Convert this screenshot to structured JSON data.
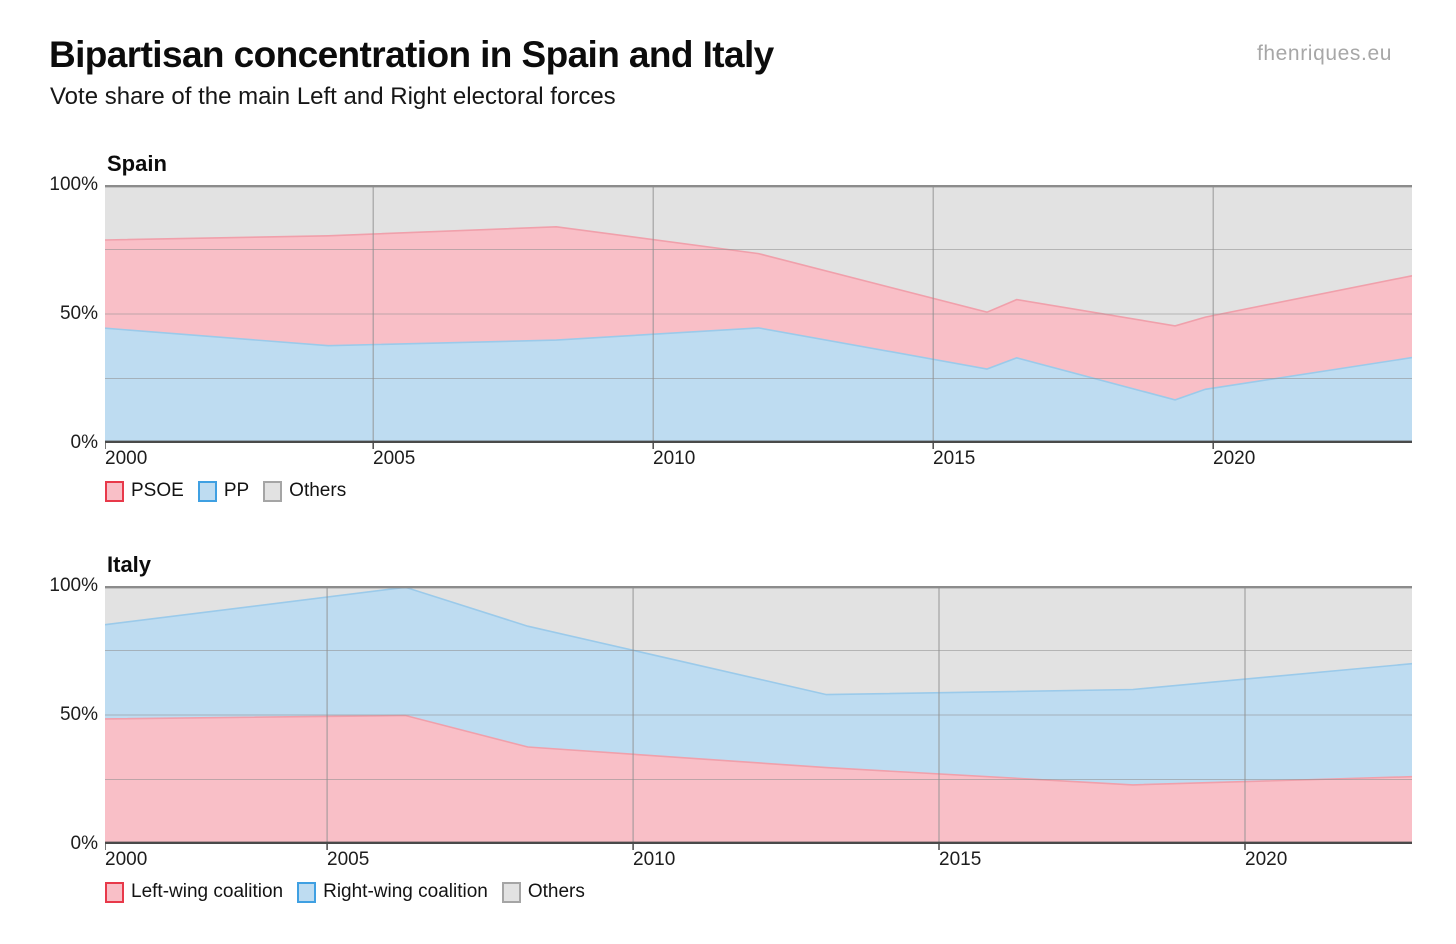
{
  "header": {
    "title": "Bipartisan concentration in Spain and Italy",
    "subtitle": "Vote share of the main Left and Right electoral forces",
    "watermark": "fhenriques.eu"
  },
  "colors": {
    "left_fill": "#f9bfc7",
    "left_edge": "#f0a0ab",
    "left_legend_border": "#e8394a",
    "right_fill": "#bedcf1",
    "right_edge": "#9bcaea",
    "right_legend_border": "#3fa0e2",
    "others_fill": "#e2e2e2",
    "others_legend_border": "#a5a5a5",
    "grid_horizontal": "#8f8f8f",
    "grid_vertical": "#8f8f8f",
    "top_border": "#8c8c8c",
    "axis": "#4a4a4a",
    "tick": "#4a4a4a",
    "text": "#1d1d1d"
  },
  "chart_data": [
    {
      "type": "area",
      "stacking": "percent_stacked",
      "title": "Spain",
      "x_domain": [
        2000.21,
        2023.55
      ],
      "ylim": [
        0,
        100
      ],
      "grid": true,
      "x": [
        2000.21,
        2004.2,
        2008.27,
        2011.88,
        2015.96,
        2016.49,
        2019.32,
        2019.86,
        2023.55
      ],
      "x_note_years": [
        "2000",
        "2004",
        "2008",
        "2011",
        "2015",
        "2016",
        "2019 Apr",
        "2019 Nov",
        "2023"
      ],
      "series": [
        {
          "name": "PP",
          "color_key": "right",
          "values": [
            44.5,
            37.7,
            39.9,
            44.6,
            28.7,
            33.0,
            16.7,
            20.8,
            33.1
          ]
        },
        {
          "name": "PSOE",
          "color_key": "left",
          "values": [
            34.2,
            42.6,
            43.9,
            28.8,
            22.0,
            22.6,
            28.7,
            28.0,
            31.7
          ]
        }
      ],
      "others": {
        "name": "Others",
        "note": "remainder_to_100"
      },
      "x_ticks": [
        {
          "label": "2000",
          "year": 2000
        },
        {
          "label": "2005",
          "year": 2005
        },
        {
          "label": "2010",
          "year": 2010
        },
        {
          "label": "2015",
          "year": 2015
        },
        {
          "label": "2020",
          "year": 2020
        }
      ],
      "y_ticks": [
        {
          "label": "100%",
          "value": 100
        },
        {
          "label": "50%",
          "value": 50
        },
        {
          "label": "0%",
          "value": 0
        }
      ],
      "y_gridlines": [
        25,
        50,
        75
      ],
      "legend": [
        {
          "label": "PSOE",
          "color_key": "left"
        },
        {
          "label": "PP",
          "color_key": "right"
        },
        {
          "label": "Others",
          "color_key": "others"
        }
      ]
    },
    {
      "type": "area",
      "stacking": "percent_stacked",
      "title": "Italy",
      "x_domain": [
        2001.37,
        2022.73
      ],
      "ylim": [
        0,
        100
      ],
      "grid": true,
      "x": [
        2001.37,
        2006.28,
        2008.28,
        2013.16,
        2018.17,
        2022.73
      ],
      "x_note_years": [
        "2001",
        "2006",
        "2008",
        "2013",
        "2018",
        "2022"
      ],
      "series": [
        {
          "name": "Left-wing coalition",
          "color_key": "left",
          "values": [
            48.5,
            49.8,
            37.6,
            29.6,
            22.9,
            26.1
          ]
        },
        {
          "name": "Right-wing coalition",
          "color_key": "right",
          "values": [
            36.5,
            49.7,
            46.8,
            28.3,
            37.0,
            43.8
          ]
        }
      ],
      "others": {
        "name": "Others",
        "note": "remainder_to_100"
      },
      "x_ticks": [
        {
          "label": "2000",
          "year": 2000
        },
        {
          "label": "2005",
          "year": 2005
        },
        {
          "label": "2010",
          "year": 2010
        },
        {
          "label": "2015",
          "year": 2015
        },
        {
          "label": "2020",
          "year": 2020
        }
      ],
      "y_ticks": [
        {
          "label": "100%",
          "value": 100
        },
        {
          "label": "50%",
          "value": 50
        },
        {
          "label": "0%",
          "value": 0
        }
      ],
      "y_gridlines": [
        25,
        50,
        75
      ],
      "legend": [
        {
          "label": "Left-wing coalition",
          "color_key": "left"
        },
        {
          "label": "Right-wing coalition",
          "color_key": "right"
        },
        {
          "label": "Others",
          "color_key": "others"
        }
      ]
    }
  ]
}
